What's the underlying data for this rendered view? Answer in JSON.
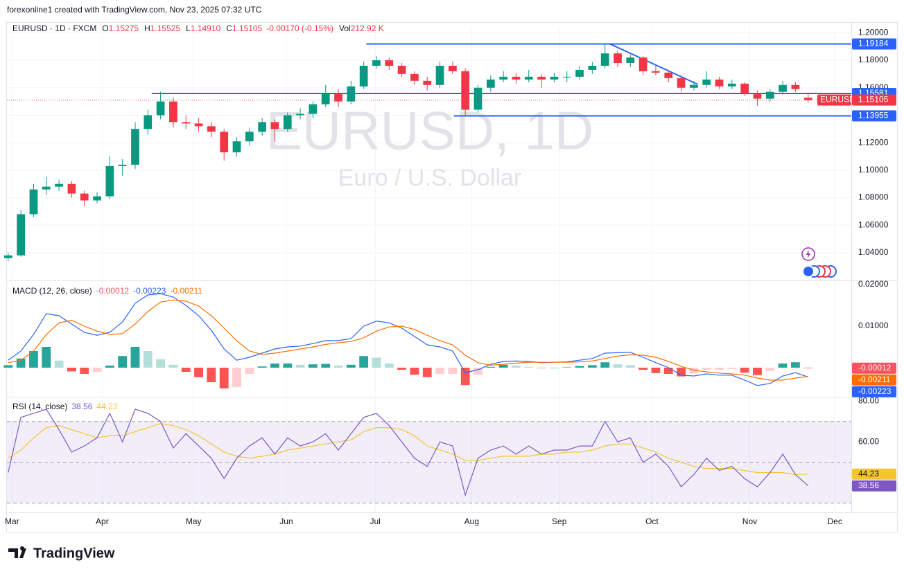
{
  "header": {
    "credit": "forexonline1 created with TradingView.com, Nov 23, 2025 07:32 UTC"
  },
  "footer": {
    "brand": "TradingView"
  },
  "chart_data": [
    {
      "type": "candlestick",
      "title": "EURUSD, 1D",
      "subtitle": "Euro / U.S. Dollar",
      "legend": {
        "symbol": "EURUSD · 1D · FXCM",
        "items": [
          {
            "label": "O",
            "value": "1.15275"
          },
          {
            "label": "H",
            "value": "1.15525"
          },
          {
            "label": "L",
            "value": "1.14910"
          },
          {
            "label": "C",
            "value": "1.15105"
          },
          {
            "value": "-0.00170 (-0.15%)"
          },
          {
            "label": "Vol",
            "value": "212.92 K"
          }
        ]
      },
      "up_color": "#089981",
      "down_color": "#f23645",
      "grid": true,
      "ylim": [
        1.0198,
        1.2037
      ],
      "yticks": [
        {
          "value": 1.04,
          "label": "1.04000"
        },
        {
          "value": 1.06,
          "label": "1.06000"
        },
        {
          "value": 1.08,
          "label": "1.08000"
        },
        {
          "value": 1.1,
          "label": "1.10000"
        },
        {
          "value": 1.12,
          "label": "1.12000"
        },
        {
          "value": 1.14,
          "label": "1.14000"
        },
        {
          "value": 1.16,
          "label": "1.16000"
        },
        {
          "value": 1.18,
          "label": "1.18000"
        },
        {
          "value": 1.2,
          "label": "1.20000"
        }
      ],
      "open": [
        1.036,
        1.038,
        1.068,
        1.086,
        1.088,
        1.09,
        1.083,
        1.078,
        1.081,
        1.103,
        1.104,
        1.13,
        1.14,
        1.15,
        1.135,
        1.134,
        1.132,
        1.128,
        1.113,
        1.121,
        1.128,
        1.135,
        1.13,
        1.14,
        1.141,
        1.148,
        1.156,
        1.15,
        1.161,
        1.176,
        1.18,
        1.176,
        1.17,
        1.165,
        1.162,
        1.176,
        1.172,
        1.144,
        1.16,
        1.166,
        1.168,
        1.166,
        1.168,
        1.166,
        1.168,
        1.168,
        1.173,
        1.176,
        1.185,
        1.178,
        1.182,
        1.172,
        1.171,
        1.167,
        1.16,
        1.162,
        1.166,
        1.161,
        1.163,
        1.156,
        1.152,
        1.157,
        1.162,
        1.15275
      ],
      "high": [
        1.04,
        1.071,
        1.09,
        1.095,
        1.093,
        1.092,
        1.085,
        1.084,
        1.11,
        1.108,
        1.135,
        1.144,
        1.157,
        1.153,
        1.14,
        1.138,
        1.135,
        1.13,
        1.124,
        1.131,
        1.138,
        1.137,
        1.142,
        1.145,
        1.15,
        1.162,
        1.159,
        1.165,
        1.179,
        1.183,
        1.182,
        1.178,
        1.172,
        1.168,
        1.179,
        1.179,
        1.174,
        1.162,
        1.169,
        1.172,
        1.171,
        1.173,
        1.17,
        1.171,
        1.172,
        1.176,
        1.179,
        1.19184,
        1.187,
        1.184,
        1.183,
        1.176,
        1.173,
        1.168,
        1.165,
        1.172,
        1.168,
        1.166,
        1.164,
        1.158,
        1.159,
        1.165,
        1.164,
        1.15525
      ],
      "low": [
        1.034,
        1.037,
        1.066,
        1.082,
        1.085,
        1.08,
        1.074,
        1.076,
        1.079,
        1.096,
        1.101,
        1.126,
        1.137,
        1.131,
        1.13,
        1.128,
        1.124,
        1.107,
        1.11,
        1.118,
        1.125,
        1.121,
        1.128,
        1.137,
        1.138,
        1.146,
        1.146,
        1.148,
        1.159,
        1.174,
        1.173,
        1.168,
        1.162,
        1.158,
        1.16,
        1.17,
        1.13955,
        1.142,
        1.157,
        1.164,
        1.163,
        1.164,
        1.16,
        1.164,
        1.164,
        1.166,
        1.17,
        1.174,
        1.175,
        1.175,
        1.169,
        1.169,
        1.164,
        1.157,
        1.158,
        1.16,
        1.159,
        1.159,
        1.154,
        1.147,
        1.15,
        1.155,
        1.157,
        1.1491
      ],
      "close": [
        1.038,
        1.068,
        1.086,
        1.088,
        1.09,
        1.083,
        1.078,
        1.081,
        1.103,
        1.104,
        1.13,
        1.14,
        1.15,
        1.135,
        1.134,
        1.132,
        1.128,
        1.113,
        1.121,
        1.128,
        1.135,
        1.13,
        1.14,
        1.141,
        1.148,
        1.156,
        1.15,
        1.161,
        1.176,
        1.18,
        1.176,
        1.17,
        1.165,
        1.162,
        1.176,
        1.172,
        1.144,
        1.16,
        1.166,
        1.168,
        1.166,
        1.168,
        1.166,
        1.168,
        1.168,
        1.173,
        1.176,
        1.185,
        1.178,
        1.182,
        1.172,
        1.171,
        1.167,
        1.16,
        1.162,
        1.166,
        1.161,
        1.163,
        1.156,
        1.152,
        1.157,
        1.162,
        1.159,
        1.15105
      ],
      "levels": [
        {
          "value": 1.19184,
          "label": "1.19184",
          "from": 28.2
        },
        {
          "value": 1.15581,
          "label": "1.15581",
          "from": 11.3
        },
        {
          "value": 1.13955,
          "label": "1.13955",
          "from": 35.1
        }
      ],
      "level_color": "#2962ff",
      "trendline": {
        "x": [
          47.4,
          54.3
        ],
        "y": [
          1.19184,
          1.1625
        ]
      },
      "last": {
        "name": "EURUSD",
        "value": 1.15105,
        "label": "1.15105",
        "color": "#f23645"
      }
    },
    {
      "type": "macd",
      "title": "MACD (12, 26, close)",
      "ylim": [
        -0.007,
        0.021
      ],
      "yticks": [
        {
          "value": 0.01,
          "label": "0.01000"
        },
        {
          "value": 0.02,
          "label": "0.02000"
        }
      ],
      "series": [
        {
          "color": "#f7525f",
          "colors": [
            "#26a69a",
            "#b2dfdb",
            "#ffcdd2",
            "#ff5252"
          ],
          "last_label": "-0.00012",
          "values": [
            0.0006,
            0.0022,
            0.004,
            0.005,
            0.0017,
            -0.0009,
            -0.0015,
            -0.001,
            0.0005,
            0.0028,
            0.005,
            0.004,
            0.002,
            0.0007,
            -0.001,
            -0.0023,
            -0.0035,
            -0.005,
            -0.0047,
            -0.0015,
            0.0003,
            0.001,
            0.001,
            0.0007,
            0.0008,
            0.0009,
            0.0005,
            0.0007,
            0.0028,
            0.0024,
            0.001,
            -0.0005,
            -0.0017,
            -0.0023,
            -0.0015,
            -0.0015,
            -0.0042,
            -0.0017,
            0.0002,
            0.0007,
            0.0005,
            0.0002,
            -0.0001,
            0,
            0.0001,
            0.0004,
            0.0006,
            0.0013,
            0.0008,
            0.0006,
            -0.0005,
            -0.0013,
            -0.0015,
            -0.0021,
            -0.0014,
            -0.0005,
            -0.0005,
            -0.0003,
            -0.0012,
            -0.0018,
            -0.0008,
            0.001,
            0.0013,
            -0.00012
          ]
        },
        {
          "color": "#2962ff",
          "last_label": "-0.00223",
          "values": [
            0.0018,
            0.004,
            0.008,
            0.013,
            0.0125,
            0.0105,
            0.0085,
            0.0078,
            0.0085,
            0.011,
            0.0155,
            0.0175,
            0.0178,
            0.017,
            0.015,
            0.0125,
            0.009,
            0.0045,
            0.0018,
            0.0025,
            0.0035,
            0.0045,
            0.005,
            0.0052,
            0.0058,
            0.0065,
            0.0065,
            0.007,
            0.01,
            0.0112,
            0.0108,
            0.0095,
            0.0075,
            0.0055,
            0.005,
            0.004,
            -0.0012,
            -0.0005,
            0.0008,
            0.0015,
            0.0016,
            0.0015,
            0.0012,
            0.0013,
            0.0014,
            0.0018,
            0.0022,
            0.0035,
            0.0036,
            0.0037,
            0.0025,
            0.0012,
            0,
            -0.0018,
            -0.002,
            -0.0015,
            -0.0018,
            -0.0018,
            -0.003,
            -0.0043,
            -0.0038,
            -0.002,
            -0.0012,
            -0.00223
          ]
        },
        {
          "color": "#ff6d00",
          "last_label": "-0.00211",
          "values": [
            0.0012,
            0.0018,
            0.004,
            0.008,
            0.0108,
            0.0114,
            0.01,
            0.0088,
            0.008,
            0.0082,
            0.0105,
            0.0135,
            0.0158,
            0.0163,
            0.016,
            0.0148,
            0.0125,
            0.0095,
            0.0065,
            0.004,
            0.0032,
            0.0035,
            0.004,
            0.0045,
            0.005,
            0.0056,
            0.006,
            0.0063,
            0.0072,
            0.0088,
            0.0098,
            0.01,
            0.0092,
            0.0078,
            0.0065,
            0.0055,
            0.003,
            0.0012,
            0.0006,
            0.0008,
            0.0011,
            0.0013,
            0.0013,
            0.0013,
            0.0013,
            0.0014,
            0.0016,
            0.0022,
            0.0028,
            0.0031,
            0.003,
            0.0025,
            0.0015,
            0.0003,
            -0.0006,
            -0.001,
            -0.0013,
            -0.0015,
            -0.0018,
            -0.0025,
            -0.003,
            -0.003,
            -0.0025,
            -0.00211
          ]
        }
      ]
    },
    {
      "type": "rsi",
      "title": "RSI (14, close)",
      "ylim": [
        25.5,
        82.1
      ],
      "yticks": [
        {
          "value": 60,
          "label": "60.00"
        },
        {
          "value": 80,
          "label": "80.00"
        }
      ],
      "bands": [
        70,
        50,
        30
      ],
      "band_color": "#7e57c2",
      "xlim": [
        -0.1,
        66.4
      ],
      "xticks": [
        {
          "value": 0.3,
          "label": "Mar"
        },
        {
          "value": 7.4,
          "label": "Apr"
        },
        {
          "value": 14.6,
          "label": "May"
        },
        {
          "value": 21.9,
          "label": "Jun"
        },
        {
          "value": 28.9,
          "label": "Jul"
        },
        {
          "value": 36.5,
          "label": "Aug"
        },
        {
          "value": 43.4,
          "label": "Sep"
        },
        {
          "value": 50.7,
          "label": "Oct"
        },
        {
          "value": 58.4,
          "label": "Nov"
        },
        {
          "value": 65.1,
          "label": "Dec"
        }
      ],
      "series": [
        {
          "color": "#7e57c2",
          "last_label": "38.56",
          "values": [
            45,
            72,
            74,
            76,
            66,
            55,
            58,
            62,
            74,
            60,
            76,
            74,
            70,
            57,
            64,
            58,
            52,
            42,
            52,
            58,
            62,
            54,
            62,
            58,
            60,
            64,
            56,
            64,
            72,
            74,
            68,
            60,
            52,
            48,
            60,
            58,
            34,
            52,
            56,
            58,
            54,
            58,
            54,
            56,
            56,
            58,
            58,
            70,
            60,
            62,
            50,
            54,
            48,
            38,
            44,
            52,
            46,
            48,
            42,
            38,
            45,
            54,
            44,
            38.56
          ]
        },
        {
          "color": "#f5c431",
          "last_label": "44.23",
          "values": [
            52,
            56,
            62,
            67,
            68,
            66,
            64,
            62,
            63,
            63,
            65,
            67,
            69,
            68,
            66,
            63,
            59,
            55,
            53,
            52,
            53,
            54,
            56,
            57,
            58,
            59,
            60,
            61,
            65,
            67,
            67,
            66,
            63,
            58,
            56,
            54,
            51,
            51,
            52,
            53,
            53,
            53,
            54,
            54,
            55,
            55,
            56,
            58,
            59,
            59,
            57,
            55,
            52,
            50,
            48,
            47,
            47,
            47,
            46,
            45,
            45,
            45,
            44,
            44.23
          ]
        }
      ]
    }
  ]
}
